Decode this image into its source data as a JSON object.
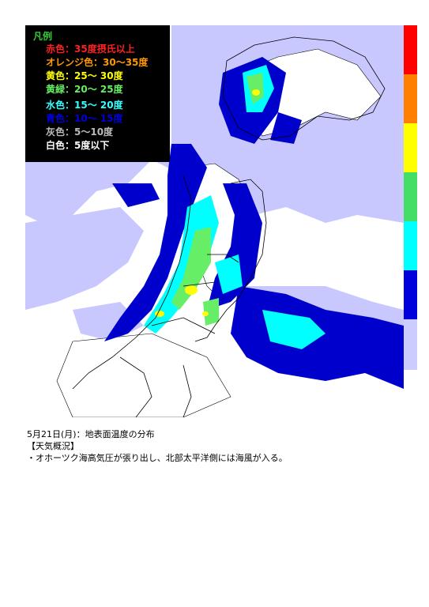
{
  "legend": {
    "title": "凡例",
    "items": [
      {
        "label": "赤色：35度摂氏以上",
        "color": "#ff2020"
      },
      {
        "label": "オレンジ色：30～35度",
        "color": "#ff9900"
      },
      {
        "label": "黄色：25～ 30度",
        "color": "#ffff00"
      },
      {
        "label": "黄緑：20～ 25度",
        "color": "#66ee66"
      },
      {
        "label": "水色：15～ 20度",
        "color": "#33ffff"
      },
      {
        "label": "青色：10～ 15度",
        "color": "#0000dd"
      },
      {
        "label": "灰色：5～10度",
        "color": "#bbbbbb"
      },
      {
        "label": "白色：5度以下",
        "color": "#ffffff"
      }
    ]
  },
  "color_scale": [
    "#ff0000",
    "#ff7f00",
    "#ffff00",
    "#44dd66",
    "#00ffff",
    "#0000dd",
    "#ccccff"
  ],
  "colors": {
    "sea_cloud": "#c8c8ff",
    "deep_blue": "#0000cc",
    "cyan": "#00ffff",
    "green": "#66ee66",
    "yellow": "#ffff00"
  },
  "caption": {
    "line1": "5月21日(月)：地表面温度の分布",
    "line2": "【天気概況】",
    "line3": "・オホーツク海高気圧が張り出し、北部太平洋側には海風が入る。"
  }
}
